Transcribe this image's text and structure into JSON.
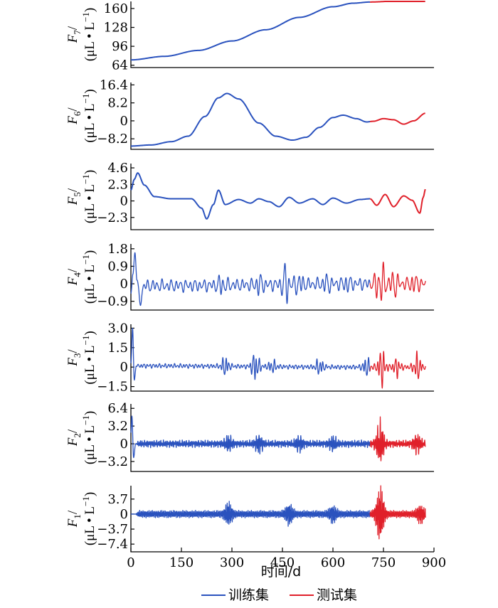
{
  "chart_data": {
    "type": "line",
    "xlabel": "时间/d",
    "xlim": [
      0,
      900
    ],
    "xticks": [
      0,
      150,
      300,
      450,
      600,
      750,
      900
    ],
    "split_day": 710,
    "end_day": 875,
    "legend": {
      "placement": "bottom",
      "items": [
        {
          "label": "训练集",
          "color": "#2a52be"
        },
        {
          "label": "测试集",
          "color": "#e0202a"
        }
      ]
    },
    "panels": [
      {
        "ylabel_var": "F",
        "ylabel_sub": "7",
        "ylabel_unit": "(μL • L",
        "ylabel_exp": "−1",
        "ylabel_close": ")",
        "ylim": [
          60,
          172
        ],
        "yticks": [
          {
            "v": 64,
            "t": "64"
          },
          {
            "v": 96,
            "t": "96"
          },
          {
            "v": 128,
            "t": "128"
          },
          {
            "v": 160,
            "t": "160"
          }
        ],
        "keypoints": [
          [
            0,
            73
          ],
          [
            100,
            79
          ],
          [
            200,
            89
          ],
          [
            300,
            105
          ],
          [
            400,
            124
          ],
          [
            500,
            145
          ],
          [
            600,
            163
          ],
          [
            660,
            169
          ],
          [
            710,
            171
          ],
          [
            800,
            173
          ],
          [
            875,
            176
          ]
        ]
      },
      {
        "ylabel_var": "F",
        "ylabel_sub": "6",
        "ylabel_unit": "(μL • L",
        "ylabel_exp": "−1",
        "ylabel_close": ")",
        "ylim": [
          -13,
          17.5
        ],
        "yticks": [
          {
            "v": -8.2,
            "t": "−8.2"
          },
          {
            "v": 0,
            "t": "0"
          },
          {
            "v": 8.2,
            "t": "8.2"
          },
          {
            "v": 16.4,
            "t": "16.4"
          }
        ],
        "keypoints": [
          [
            0,
            -11.5
          ],
          [
            60,
            -11
          ],
          [
            120,
            -9.5
          ],
          [
            170,
            -7
          ],
          [
            220,
            2
          ],
          [
            260,
            10.5
          ],
          [
            285,
            12.5
          ],
          [
            320,
            10
          ],
          [
            380,
            -1
          ],
          [
            430,
            -7
          ],
          [
            480,
            -8.8
          ],
          [
            520,
            -7.5
          ],
          [
            560,
            -3
          ],
          [
            600,
            1.5
          ],
          [
            630,
            2.6
          ],
          [
            670,
            1
          ],
          [
            700,
            -0.5
          ],
          [
            720,
            -0.2
          ],
          [
            750,
            1
          ],
          [
            780,
            0.5
          ],
          [
            810,
            -1.5
          ],
          [
            840,
            0
          ],
          [
            875,
            3.5
          ]
        ]
      },
      {
        "ylabel_var": "F",
        "ylabel_sub": "5",
        "ylabel_unit": "(μL • L",
        "ylabel_exp": "−1",
        "ylabel_close": ")",
        "ylim": [
          -4,
          5.2
        ],
        "yticks": [
          {
            "v": -2.3,
            "t": "−2.3"
          },
          {
            "v": 0,
            "t": "0"
          },
          {
            "v": 2.3,
            "t": "2.3"
          },
          {
            "v": 4.6,
            "t": "4.6"
          }
        ],
        "keypoints": [
          [
            0,
            1.5
          ],
          [
            10,
            3
          ],
          [
            20,
            3.9
          ],
          [
            40,
            2.2
          ],
          [
            70,
            0.6
          ],
          [
            120,
            0.3
          ],
          [
            180,
            0.3
          ],
          [
            210,
            -1
          ],
          [
            225,
            -2.5
          ],
          [
            245,
            -0.5
          ],
          [
            260,
            1.5
          ],
          [
            280,
            -0.5
          ],
          [
            320,
            0.2
          ],
          [
            355,
            -0.3
          ],
          [
            380,
            0.3
          ],
          [
            410,
            -0.1
          ],
          [
            440,
            -0.8
          ],
          [
            470,
            0.5
          ],
          [
            500,
            -0.3
          ],
          [
            540,
            0.3
          ],
          [
            570,
            -0.5
          ],
          [
            600,
            0.4
          ],
          [
            640,
            -0.3
          ],
          [
            680,
            0.2
          ],
          [
            710,
            0.3
          ],
          [
            730,
            -0.6
          ],
          [
            755,
            0.9
          ],
          [
            780,
            -0.8
          ],
          [
            810,
            0.7
          ],
          [
            835,
            0.1
          ],
          [
            858,
            -1.7
          ],
          [
            868,
            0.5
          ],
          [
            875,
            1.7
          ]
        ]
      },
      {
        "ylabel_var": "F",
        "ylabel_sub": "4",
        "ylabel_unit": "(μL • L",
        "ylabel_exp": "−1",
        "ylabel_close": ")",
        "ylim": [
          -1.35,
          2.05
        ],
        "yticks": [
          {
            "v": -0.9,
            "t": "−0.9"
          },
          {
            "v": 0,
            "t": "0"
          },
          {
            "v": 0.9,
            "t": "0.9"
          },
          {
            "v": 1.8,
            "t": "1.8"
          }
        ],
        "keypoints": [
          [
            0,
            -0.5
          ],
          [
            6,
            0.5
          ],
          [
            12,
            1.6
          ],
          [
            18,
            0.2
          ],
          [
            26,
            -0.9
          ],
          [
            40,
            -0.1
          ],
          [
            710,
            0
          ],
          [
            875,
            0
          ]
        ],
        "bursts": [
          [
            270,
            0.35
          ],
          [
            380,
            0.35
          ],
          [
            460,
            0.8
          ],
          [
            500,
            0.4
          ],
          [
            580,
            0.3
          ],
          [
            640,
            0.25
          ],
          [
            740,
            1.2
          ],
          [
            780,
            0.5
          ],
          [
            840,
            0.3
          ]
        ],
        "noise": {
          "amp": 0.28,
          "period": 14
        }
      },
      {
        "ylabel_var": "F",
        "ylabel_sub": "3",
        "ylabel_unit": "(μL • L",
        "ylabel_exp": "−1",
        "ylabel_close": ")",
        "ylim": [
          -1.85,
          3.3
        ],
        "yticks": [
          {
            "v": -1.5,
            "t": "−1.5"
          },
          {
            "v": 0,
            "t": "0"
          },
          {
            "v": 1.5,
            "t": "1.5"
          },
          {
            "v": 3.0,
            "t": "3.0"
          }
        ],
        "keypoints": [
          [
            0,
            0.3
          ],
          [
            5,
            3.0
          ],
          [
            10,
            -1.0
          ],
          [
            16,
            0.1
          ],
          [
            710,
            0
          ],
          [
            875,
            0
          ]
        ],
        "bursts": [
          [
            280,
            0.6
          ],
          [
            370,
            1.0
          ],
          [
            420,
            0.4
          ],
          [
            560,
            0.5
          ],
          [
            700,
            0.6
          ],
          [
            745,
            1.3
          ],
          [
            790,
            0.6
          ],
          [
            850,
            0.9
          ]
        ],
        "noise": {
          "amp": 0.15,
          "period": 9
        }
      },
      {
        "ylabel_var": "F",
        "ylabel_sub": "2",
        "ylabel_unit": "(μL • L",
        "ylabel_exp": "−1",
        "ylabel_close": ")",
        "ylim": [
          -5,
          7.2
        ],
        "yticks": [
          {
            "v": -3.2,
            "t": "−3.2"
          },
          {
            "v": 0,
            "t": "0"
          },
          {
            "v": 3.2,
            "t": "3.2"
          },
          {
            "v": 6.4,
            "t": "6.4"
          }
        ],
        "keypoints": [
          [
            0,
            2
          ],
          [
            3,
            5
          ],
          [
            8,
            -2.5
          ],
          [
            14,
            0
          ],
          [
            710,
            0
          ],
          [
            875,
            0
          ]
        ],
        "bursts": [
          [
            290,
            1.0
          ],
          [
            380,
            1.2
          ],
          [
            500,
            1.0
          ],
          [
            600,
            0.9
          ],
          [
            740,
            3.3
          ],
          [
            850,
            1.3
          ]
        ],
        "noise": {
          "amp": 0.55,
          "period": 4
        }
      },
      {
        "ylabel_var": "F",
        "ylabel_sub": "1",
        "ylabel_unit": "(μL • L",
        "ylabel_exp": "−1",
        "ylabel_close": ")",
        "ylim": [
          -9.3,
          7.0
        ],
        "yticks": [
          {
            "v": -7.4,
            "t": "−7.4"
          },
          {
            "v": -3.7,
            "t": "−3.7"
          },
          {
            "v": 0,
            "t": "0"
          },
          {
            "v": 3.7,
            "t": "3.7"
          }
        ],
        "keypoints": [
          [
            0,
            0
          ],
          [
            875,
            0
          ]
        ],
        "bursts": [
          [
            290,
            2.0
          ],
          [
            470,
            1.8
          ],
          [
            600,
            1.4
          ],
          [
            740,
            5.5
          ],
          [
            860,
            1.5
          ]
        ],
        "noise": {
          "amp": 0.75,
          "period": 2
        }
      }
    ]
  }
}
